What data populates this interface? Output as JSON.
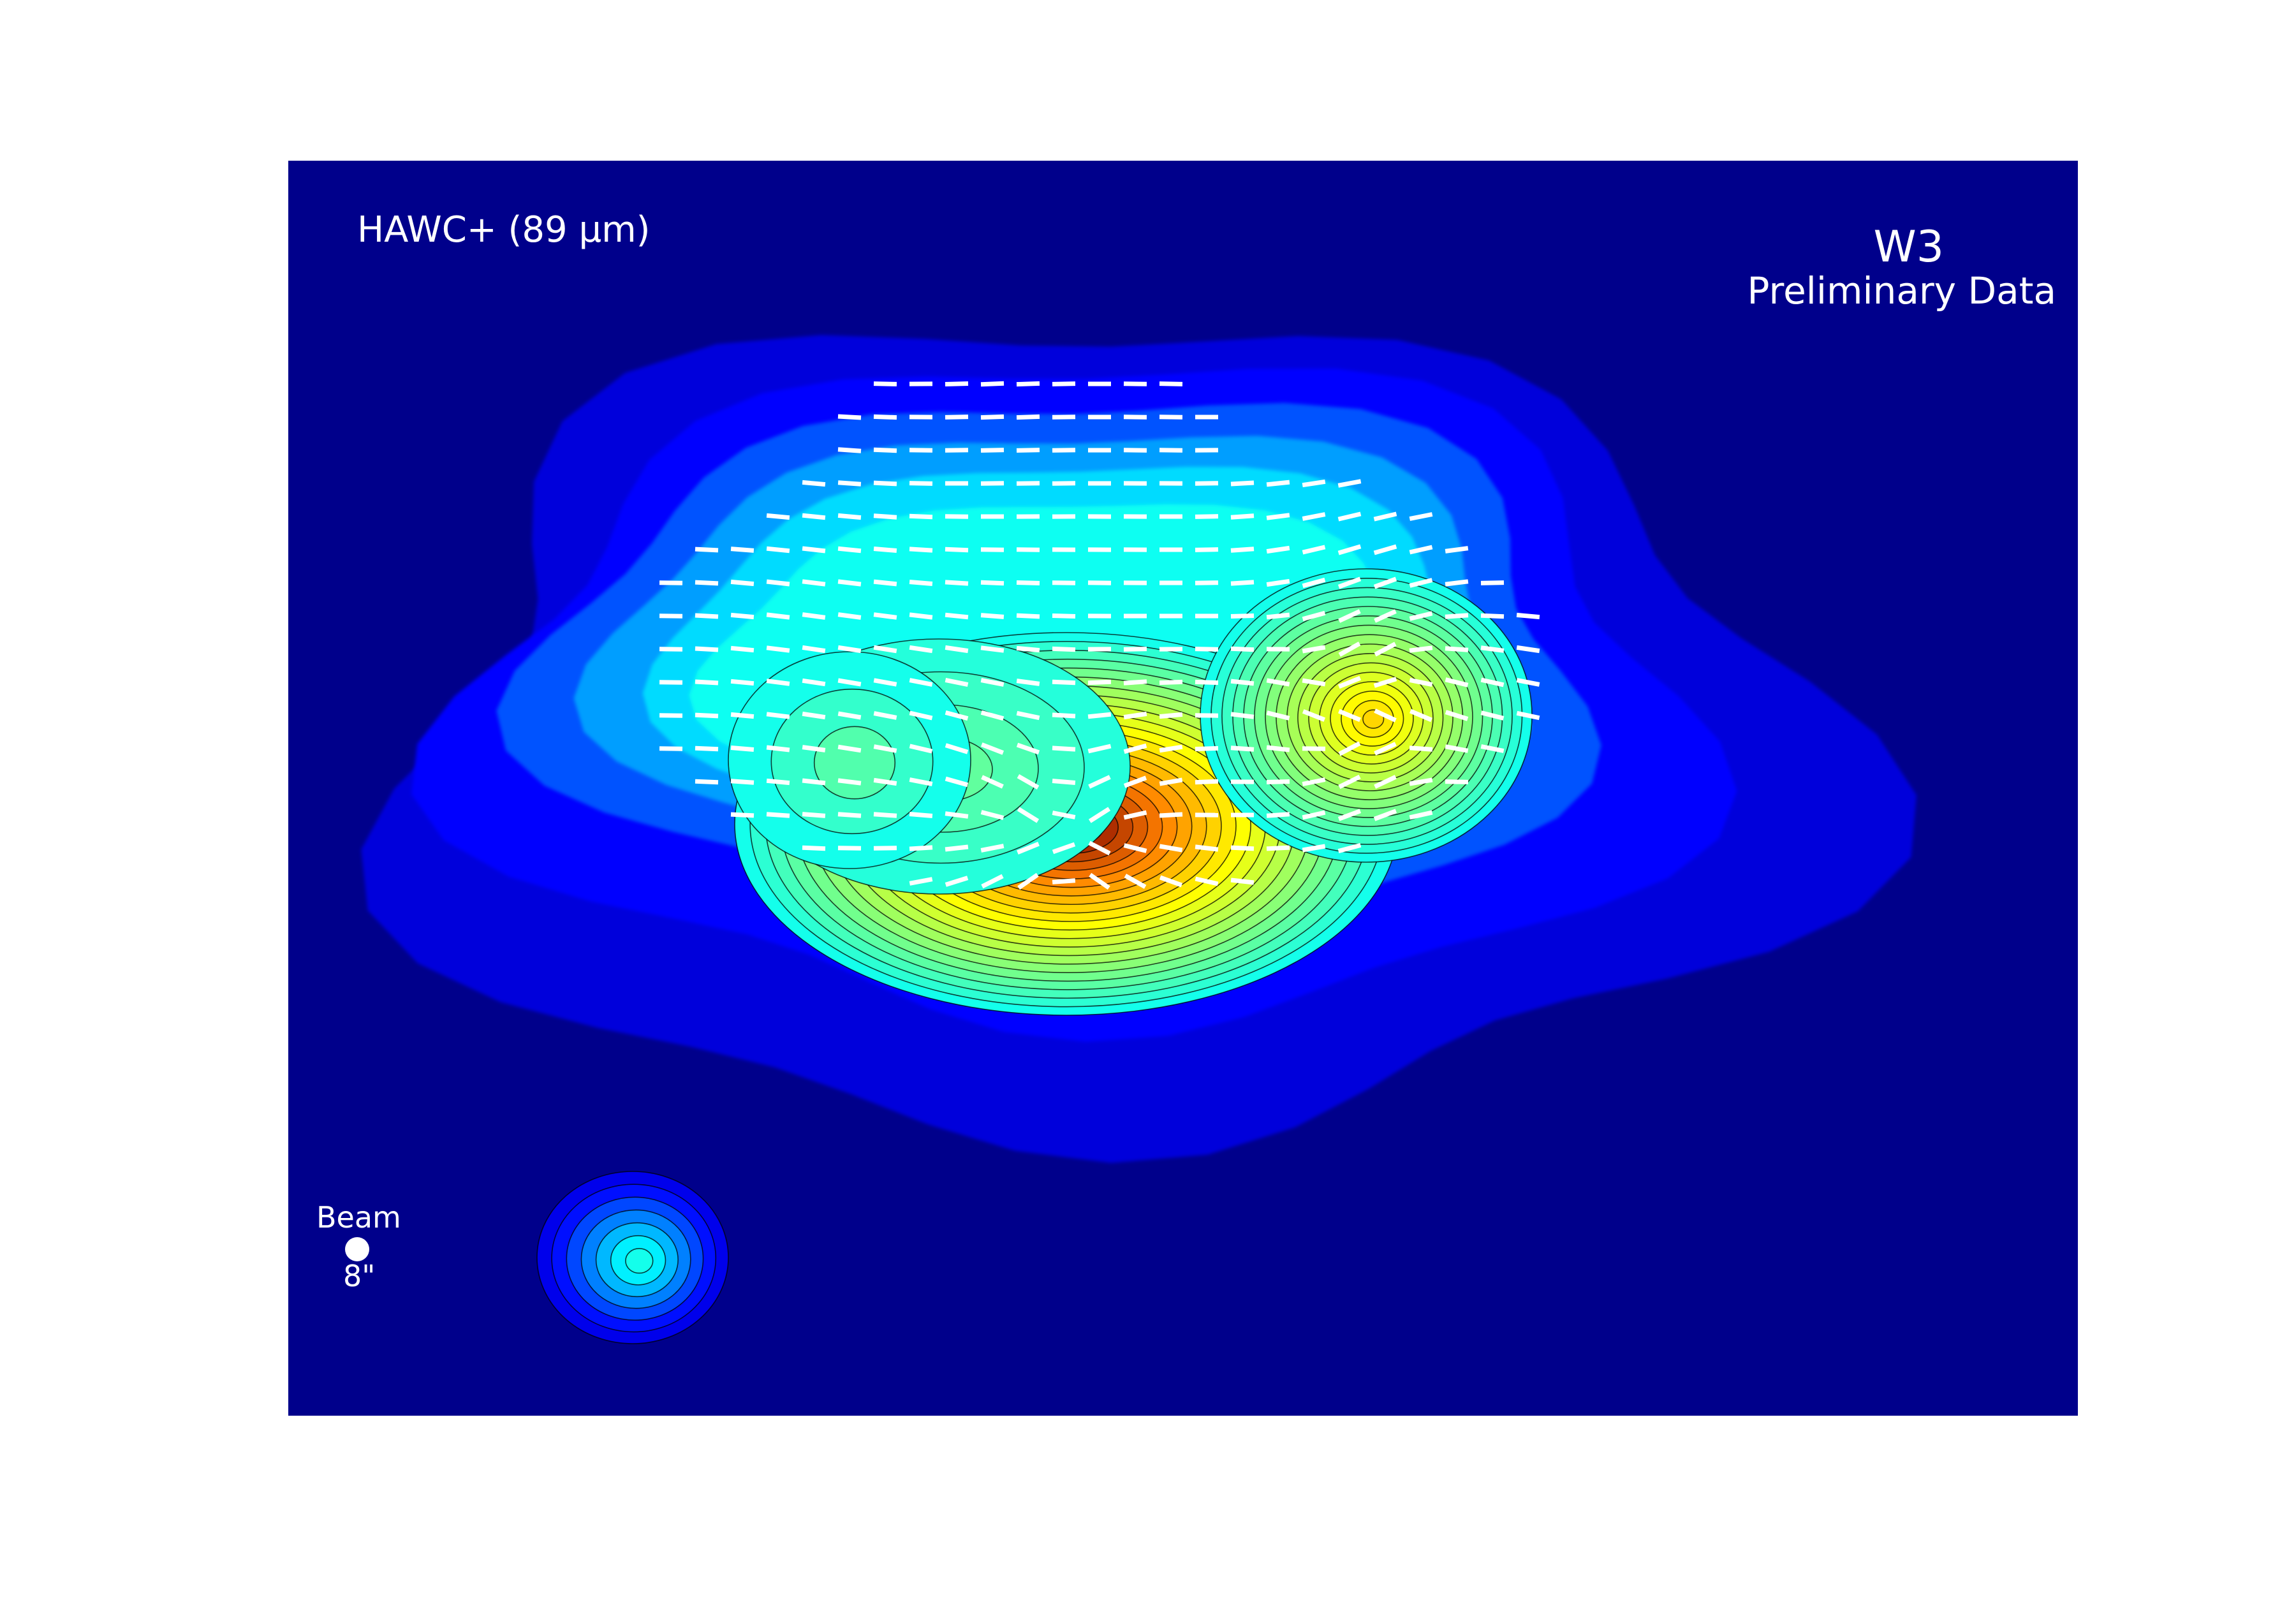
{
  "figure": {
    "instrument_label": "HAWC+ (89 μm)",
    "target_name": "W3",
    "data_status": "Preliminary Data",
    "beam_label": "Beam",
    "beam_size": "8\""
  },
  "colormap": {
    "name": "jet",
    "background": "#00008b",
    "stops": [
      "#00007f",
      "#0000ff",
      "#00ffff",
      "#7fff7f",
      "#ffff00",
      "#ff7f00",
      "#7f0000"
    ]
  },
  "vector_color": "#ffffff",
  "contour_color": "#000000"
}
